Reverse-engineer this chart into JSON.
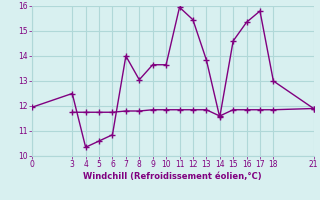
{
  "xlabel": "Windchill (Refroidissement éolien,°C)",
  "background_color": "#d8f0f0",
  "grid_color": "#b0d8d8",
  "line_color": "#800080",
  "xlim": [
    0,
    21
  ],
  "ylim": [
    10,
    16
  ],
  "yticks": [
    10,
    11,
    12,
    13,
    14,
    15,
    16
  ],
  "xticks": [
    0,
    3,
    4,
    5,
    6,
    7,
    8,
    9,
    10,
    11,
    12,
    13,
    14,
    15,
    16,
    17,
    18,
    21
  ],
  "line1_x": [
    0,
    3,
    4,
    5,
    6,
    7,
    8,
    9,
    10,
    11,
    12,
    13,
    14,
    15,
    16,
    17,
    18,
    21
  ],
  "line1_y": [
    11.95,
    12.5,
    10.35,
    10.6,
    10.85,
    14.0,
    13.05,
    13.65,
    13.65,
    15.95,
    15.45,
    13.85,
    11.55,
    14.6,
    15.35,
    15.8,
    13.0,
    11.9
  ],
  "line2_x": [
    3,
    4,
    5,
    6,
    7,
    8,
    9,
    10,
    11,
    12,
    13,
    14,
    15,
    16,
    17,
    18,
    21
  ],
  "line2_y": [
    11.75,
    11.75,
    11.75,
    11.75,
    11.8,
    11.8,
    11.85,
    11.85,
    11.85,
    11.85,
    11.85,
    11.6,
    11.85,
    11.85,
    11.85,
    11.85,
    11.9
  ]
}
